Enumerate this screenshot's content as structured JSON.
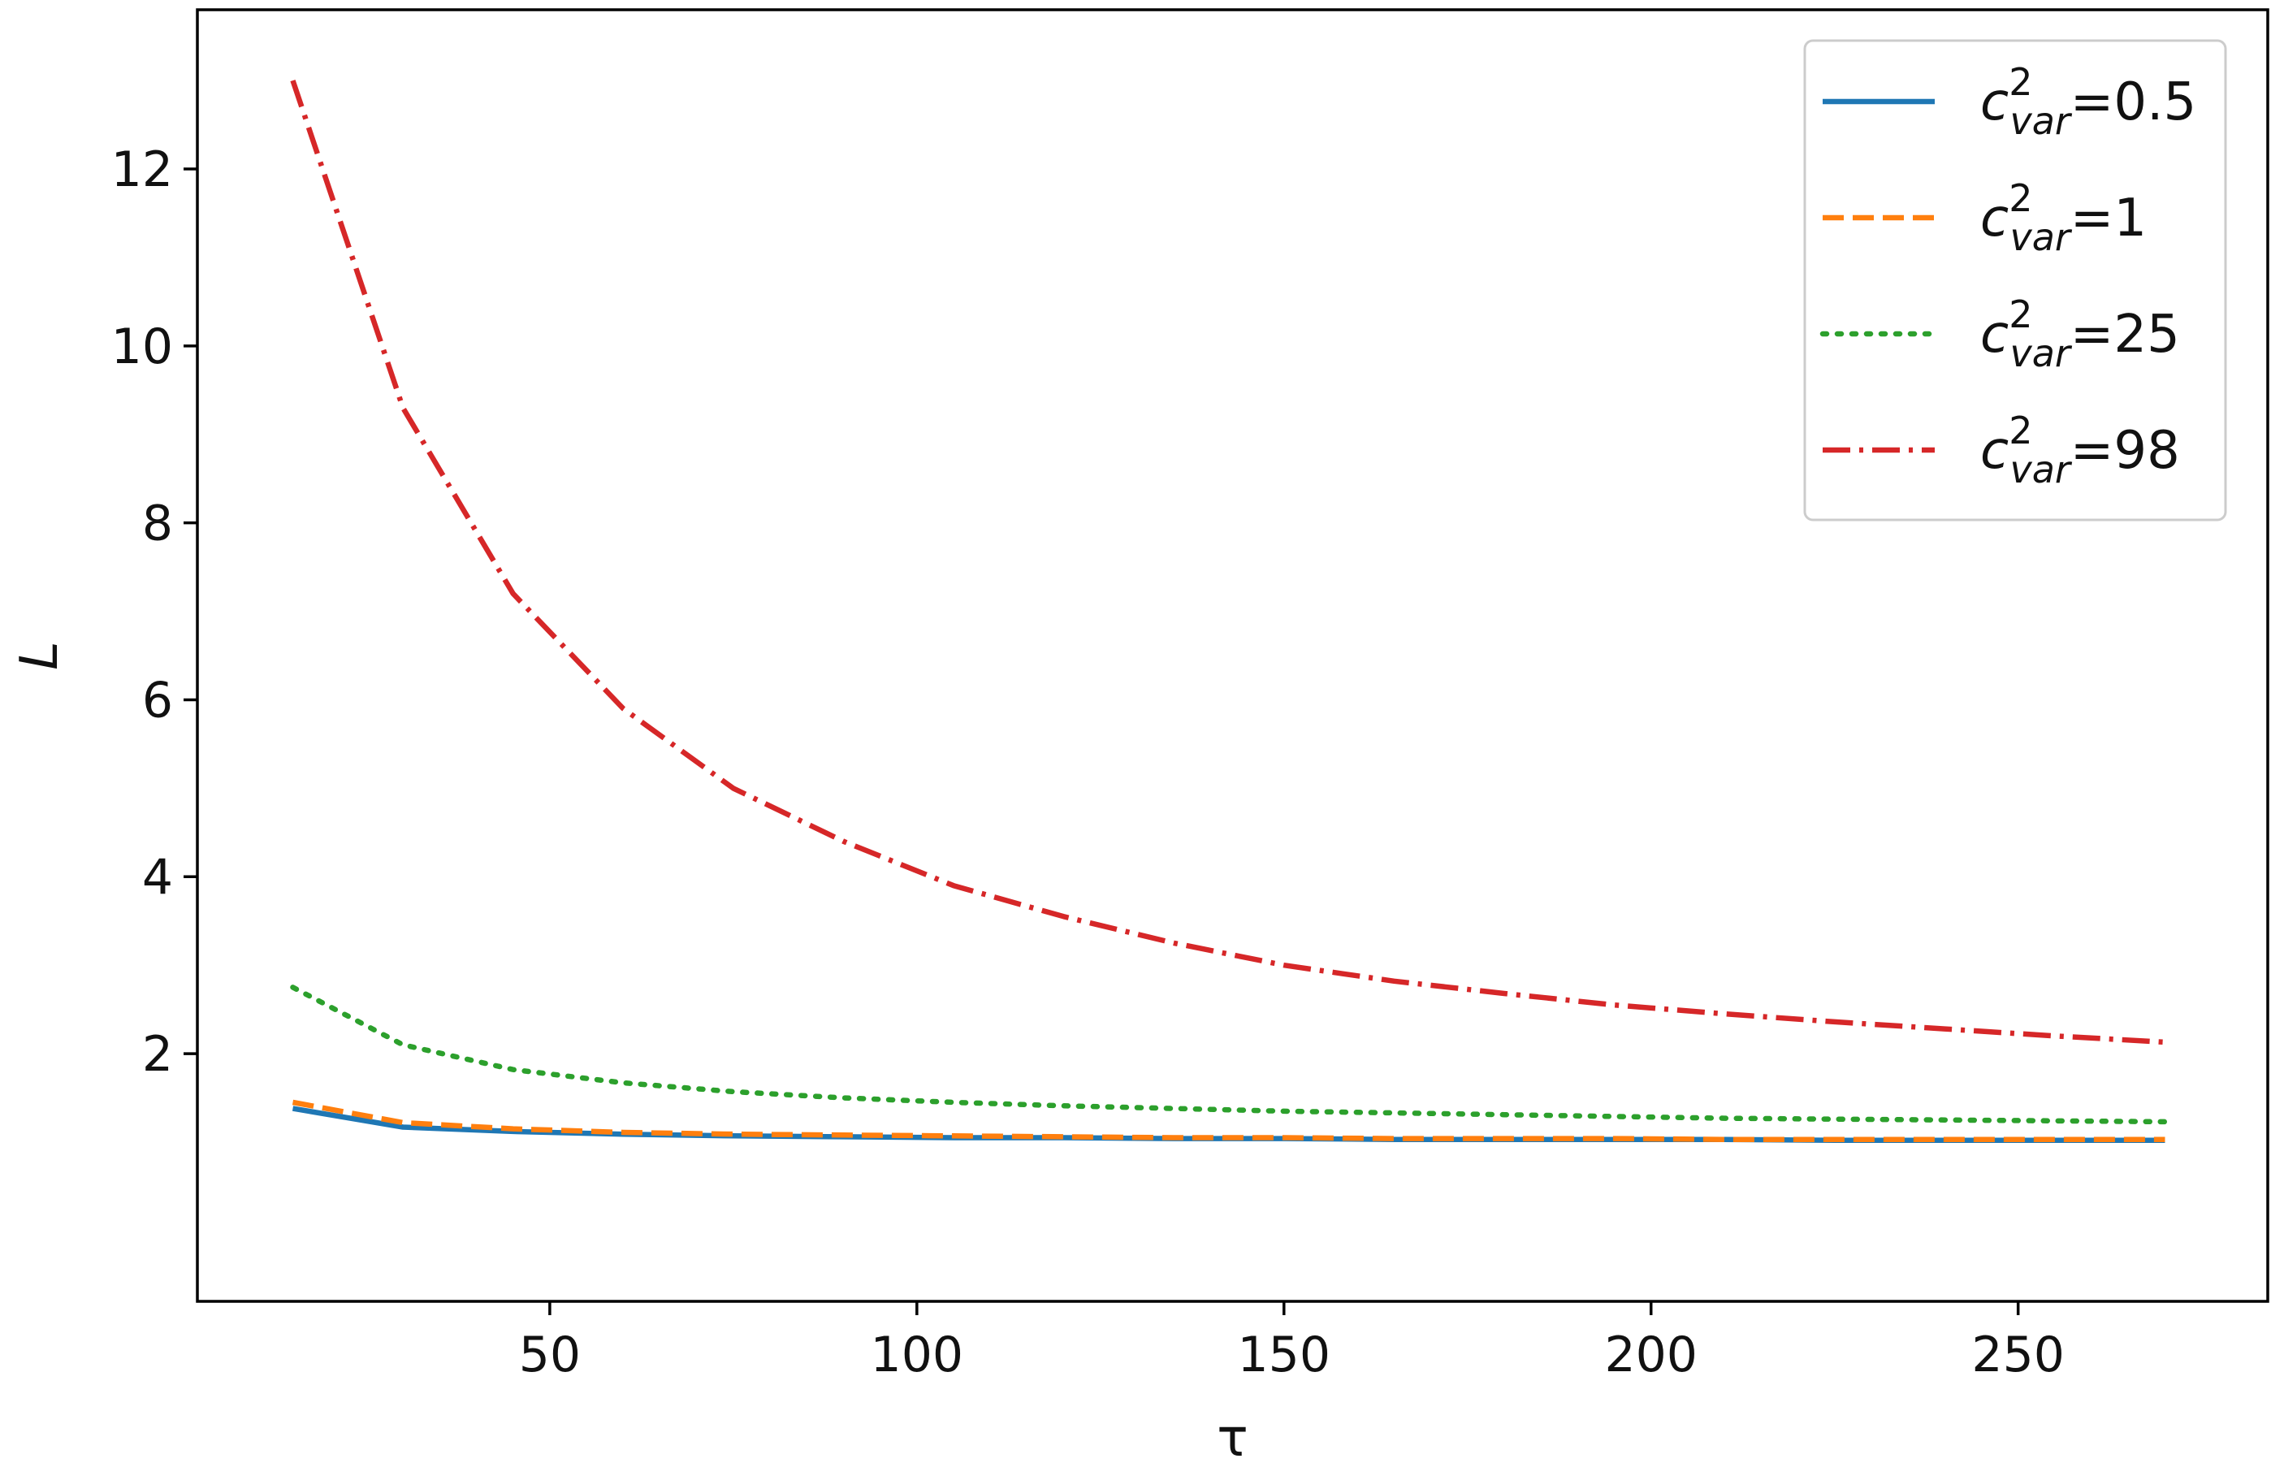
{
  "chart_data": {
    "type": "line",
    "title": "",
    "xlabel": "τ",
    "ylabel": "L",
    "xlim": [
      2,
      284
    ],
    "ylim": [
      -0.8,
      13.8
    ],
    "xticks": [
      50,
      100,
      150,
      200,
      250
    ],
    "yticks": [
      2,
      4,
      6,
      8,
      10,
      12
    ],
    "x_tick_labels": [
      "50",
      "100",
      "150",
      "200",
      "250"
    ],
    "y_tick_labels": [
      "2",
      "4",
      "6",
      "8",
      "10",
      "12"
    ],
    "grid": false,
    "legend_position": "top-right",
    "x": [
      15,
      30,
      45,
      60,
      75,
      90,
      105,
      120,
      135,
      150,
      165,
      180,
      195,
      210,
      225,
      240,
      255,
      270
    ],
    "series": [
      {
        "name_base": "c",
        "name_sup": "2",
        "name_sub": "var",
        "name_value": "=0.5",
        "style": "solid",
        "color": "#1f77b4",
        "values": [
          1.38,
          1.17,
          1.12,
          1.09,
          1.07,
          1.06,
          1.05,
          1.05,
          1.04,
          1.04,
          1.03,
          1.03,
          1.03,
          1.03,
          1.02,
          1.02,
          1.02,
          1.02
        ]
      },
      {
        "name_base": "c",
        "name_sup": "2",
        "name_sub": "var",
        "name_value": "=1",
        "style": "dashed",
        "color": "#ff7f0e",
        "values": [
          1.45,
          1.22,
          1.15,
          1.11,
          1.09,
          1.08,
          1.07,
          1.06,
          1.05,
          1.05,
          1.04,
          1.04,
          1.04,
          1.03,
          1.03,
          1.03,
          1.03,
          1.03
        ]
      },
      {
        "name_base": "c",
        "name_sup": "2",
        "name_sub": "var",
        "name_value": "=25",
        "style": "dotted",
        "color": "#2ca02c",
        "values": [
          2.75,
          2.1,
          1.82,
          1.67,
          1.57,
          1.5,
          1.45,
          1.41,
          1.38,
          1.35,
          1.33,
          1.31,
          1.29,
          1.27,
          1.26,
          1.25,
          1.24,
          1.23
        ]
      },
      {
        "name_base": "c",
        "name_sup": "2",
        "name_sub": "var",
        "name_value": "=98",
        "style": "dashdot",
        "color": "#d62728",
        "values": [
          13.0,
          9.3,
          7.2,
          5.9,
          5.0,
          4.4,
          3.9,
          3.55,
          3.25,
          3.0,
          2.82,
          2.68,
          2.55,
          2.45,
          2.36,
          2.28,
          2.2,
          2.13
        ]
      }
    ]
  }
}
